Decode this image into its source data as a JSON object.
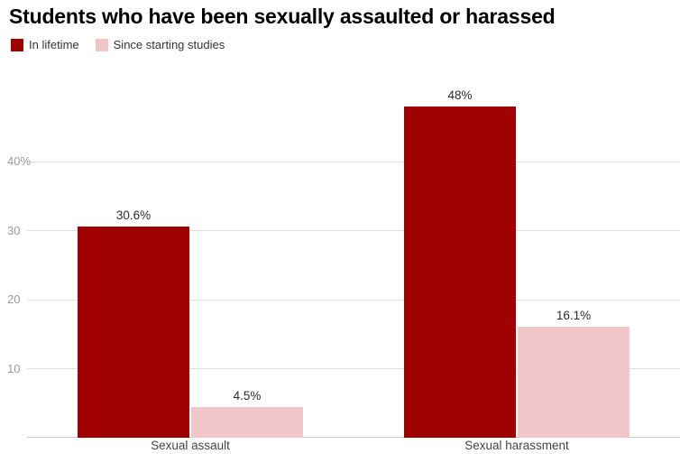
{
  "title": "Students who have been sexually assaulted or harassed",
  "legend": {
    "items": [
      {
        "label": "In lifetime",
        "color": "#a00000"
      },
      {
        "label": "Since starting studies",
        "color": "#f0c6c8"
      }
    ]
  },
  "chart_data": {
    "type": "bar",
    "title": "Students who have been sexually assaulted or harassed",
    "categories": [
      "Sexual assault",
      "Sexual harassment"
    ],
    "series": [
      {
        "name": "In lifetime",
        "color": "#a00000",
        "values": [
          30.6,
          48
        ]
      },
      {
        "name": "Since starting studies",
        "color": "#f0c6c8",
        "values": [
          4.5,
          16.1
        ]
      }
    ],
    "value_labels": [
      [
        "30.6%",
        "48%"
      ],
      [
        "4.5%",
        "16.1%"
      ]
    ],
    "yticks": [
      {
        "value": 10,
        "label": "10"
      },
      {
        "value": 20,
        "label": "20"
      },
      {
        "value": 30,
        "label": "30"
      },
      {
        "value": 40,
        "label": "40%"
      }
    ],
    "ylim": [
      0,
      54
    ],
    "xlabel": "",
    "ylabel": "",
    "grid": true,
    "legend_position": "top-left"
  }
}
